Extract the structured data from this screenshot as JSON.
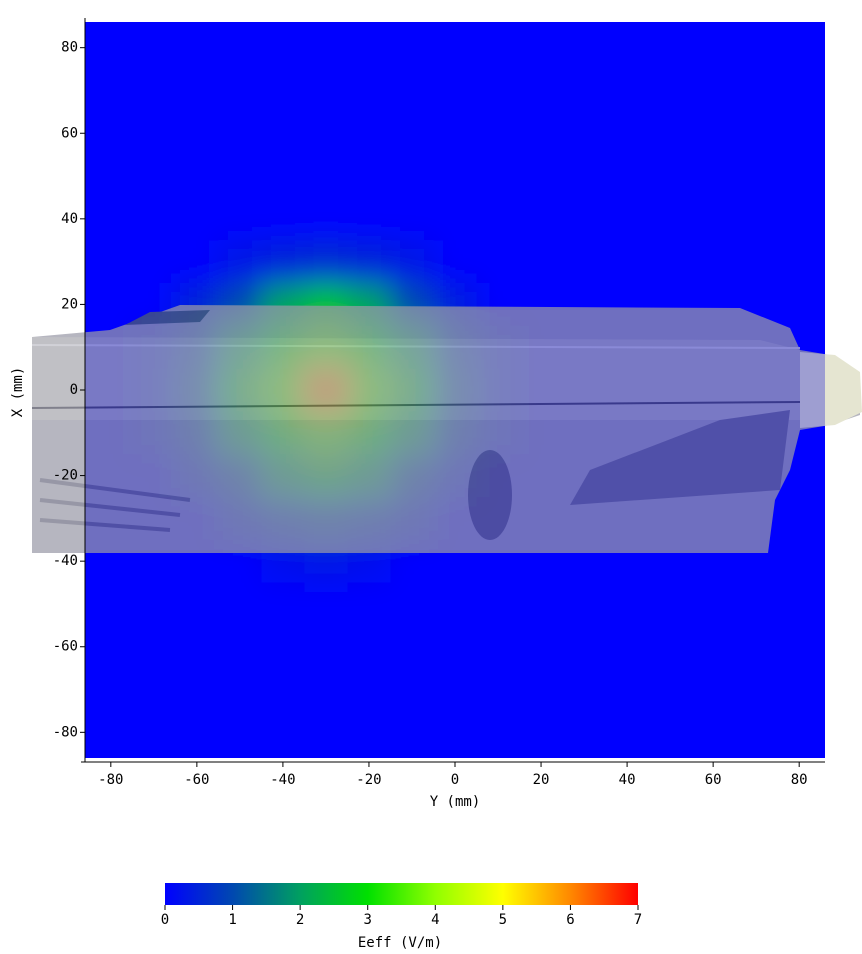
{
  "chart_data": {
    "type": "heatmap",
    "x_label": "Y (mm)",
    "y_label": "X (mm)",
    "xlim": [
      -86,
      86
    ],
    "ylim": [
      -86,
      86
    ],
    "xticks": [
      -80,
      -60,
      -40,
      -20,
      0,
      20,
      40,
      60,
      80
    ],
    "yticks": [
      -80,
      -60,
      -40,
      -20,
      0,
      20,
      40,
      60,
      80
    ],
    "x": [
      -80,
      -70,
      -60,
      -50,
      -40,
      -30,
      -20,
      -10,
      0,
      10,
      20,
      30,
      40,
      50,
      60,
      70,
      80
    ],
    "y": [
      80,
      70,
      60,
      50,
      40,
      30,
      20,
      10,
      0,
      -10,
      -20,
      -30,
      -40,
      -50,
      -60,
      -70,
      -80
    ],
    "z": [
      [
        0,
        0,
        0,
        0,
        0,
        0,
        0,
        0,
        0,
        0,
        0,
        0,
        0,
        0,
        0,
        0,
        0
      ],
      [
        0,
        0,
        0,
        0,
        0,
        0,
        0,
        0,
        0,
        0,
        0,
        0,
        0,
        0,
        0,
        0,
        0
      ],
      [
        0,
        0,
        0,
        0,
        0,
        0,
        0,
        0,
        0,
        0,
        0,
        0,
        0,
        0,
        0,
        0,
        0
      ],
      [
        0,
        0,
        0,
        0,
        0,
        0,
        0,
        0,
        0,
        0,
        0,
        0,
        0,
        0,
        0,
        0,
        0
      ],
      [
        0,
        0,
        0,
        0,
        0,
        0,
        0,
        0,
        0,
        0,
        0,
        0,
        0,
        0,
        0,
        0,
        0
      ],
      [
        0,
        0,
        0,
        0.3,
        0.5,
        0.6,
        0.5,
        0.3,
        0,
        0,
        0,
        0,
        0,
        0,
        0,
        0,
        0
      ],
      [
        0,
        0,
        0.5,
        1,
        2,
        2.5,
        2,
        1,
        0.4,
        0,
        0,
        0,
        0,
        0,
        0,
        0,
        0
      ],
      [
        0,
        0.3,
        0.8,
        2,
        3,
        3.5,
        3,
        2,
        0.8,
        0.3,
        0,
        0,
        0,
        0,
        0,
        0,
        0
      ],
      [
        0,
        0.3,
        1,
        2.5,
        3.5,
        6,
        3.5,
        2.5,
        1,
        0.3,
        0,
        0,
        0,
        0,
        0,
        0,
        0
      ],
      [
        0,
        0.3,
        0.8,
        2,
        3,
        3.5,
        3,
        2,
        0.8,
        0.3,
        0,
        0,
        0,
        0,
        0,
        0,
        0
      ],
      [
        0,
        0,
        0.5,
        1,
        2,
        2.5,
        2,
        1,
        0.4,
        0,
        0,
        0,
        0,
        0,
        0,
        0,
        0
      ],
      [
        0,
        0,
        0,
        0.5,
        0.8,
        1,
        0.8,
        0.5,
        0,
        0,
        0,
        0,
        0,
        0,
        0,
        0,
        0
      ],
      [
        0,
        0,
        0,
        0,
        0.2,
        0.3,
        0.2,
        0,
        0,
        0,
        0,
        0,
        0,
        0,
        0,
        0,
        0
      ],
      [
        0,
        0,
        0,
        0,
        0,
        0,
        0,
        0,
        0,
        0,
        0,
        0,
        0,
        0,
        0,
        0,
        0
      ],
      [
        0,
        0,
        0,
        0,
        0,
        0,
        0,
        0,
        0,
        0,
        0,
        0,
        0,
        0,
        0,
        0,
        0
      ],
      [
        0,
        0,
        0,
        0,
        0,
        0,
        0,
        0,
        0,
        0,
        0,
        0,
        0,
        0,
        0,
        0,
        0
      ],
      [
        0,
        0,
        0,
        0,
        0,
        0,
        0,
        0,
        0,
        0,
        0,
        0,
        0,
        0,
        0,
        0,
        0
      ]
    ],
    "clim": [
      0,
      7
    ],
    "cticks": [
      0,
      1,
      2,
      3,
      4,
      5,
      6,
      7
    ],
    "colorbar_label": "Eeff (V/m)",
    "colors": [
      "#0000ff",
      "#0048b0",
      "#00a060",
      "#00e000",
      "#90ff00",
      "#ffff00",
      "#ff8800",
      "#ff0000"
    ]
  }
}
